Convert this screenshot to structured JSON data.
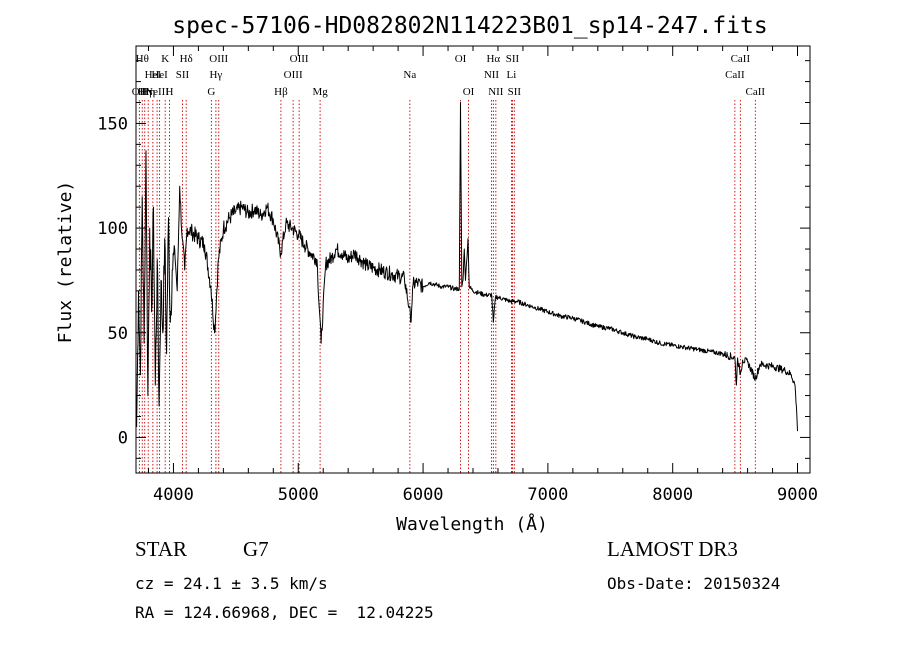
{
  "chart_data": {
    "type": "line",
    "title": "spec-57106-HD082802N114223B01_sp14-247.fits",
    "xlabel": "Wavelength (Å)",
    "ylabel": "Flux (relative)",
    "xlim": [
      3700,
      9100
    ],
    "ylim": [
      -17,
      187
    ],
    "x_ticks": [
      4000,
      5000,
      6000,
      7000,
      8000,
      9000
    ],
    "x_tick_labels": [
      "4000",
      "5000",
      "6000",
      "7000",
      "8000",
      "9000"
    ],
    "y_ticks": [
      0,
      50,
      100,
      150
    ],
    "y_tick_labels": [
      "0",
      "50",
      "100",
      "150"
    ],
    "grid": false,
    "series": [
      {
        "name": "spectrum",
        "color": "#000000",
        "anchor_points": [
          [
            3705,
            5
          ],
          [
            3720,
            70
          ],
          [
            3735,
            30
          ],
          [
            3750,
            115
          ],
          [
            3765,
            45
          ],
          [
            3780,
            137
          ],
          [
            3795,
            20
          ],
          [
            3810,
            100
          ],
          [
            3825,
            60
          ],
          [
            3840,
            110
          ],
          [
            3855,
            25
          ],
          [
            3870,
            85
          ],
          [
            3885,
            15
          ],
          [
            3900,
            75
          ],
          [
            3915,
            50
          ],
          [
            3930,
            95
          ],
          [
            3945,
            40
          ],
          [
            3960,
            105
          ],
          [
            3975,
            55
          ],
          [
            3990,
            80
          ],
          [
            4010,
            90
          ],
          [
            4030,
            70
          ],
          [
            4050,
            120
          ],
          [
            4070,
            95
          ],
          [
            4090,
            80
          ],
          [
            4110,
            100
          ],
          [
            4150,
            98
          ],
          [
            4200,
            95
          ],
          [
            4250,
            92
          ],
          [
            4300,
            72
          ],
          [
            4330,
            50
          ],
          [
            4360,
            85
          ],
          [
            4400,
            100
          ],
          [
            4450,
            105
          ],
          [
            4500,
            108
          ],
          [
            4550,
            110
          ],
          [
            4600,
            107
          ],
          [
            4650,
            109
          ],
          [
            4700,
            106
          ],
          [
            4750,
            110
          ],
          [
            4800,
            104
          ],
          [
            4860,
            88
          ],
          [
            4900,
            102
          ],
          [
            4950,
            100
          ],
          [
            5000,
            97
          ],
          [
            5050,
            92
          ],
          [
            5100,
            88
          ],
          [
            5150,
            85
          ],
          [
            5183,
            45
          ],
          [
            5220,
            83
          ],
          [
            5270,
            86
          ],
          [
            5300,
            90
          ],
          [
            5350,
            88
          ],
          [
            5400,
            85
          ],
          [
            5450,
            88
          ],
          [
            5500,
            85
          ],
          [
            5550,
            82
          ],
          [
            5600,
            81
          ],
          [
            5650,
            80
          ],
          [
            5700,
            79
          ],
          [
            5750,
            78
          ],
          [
            5800,
            77
          ],
          [
            5850,
            76
          ],
          [
            5890,
            62
          ],
          [
            5900,
            55
          ],
          [
            5920,
            73
          ],
          [
            5950,
            74
          ],
          [
            6000,
            72
          ],
          [
            6050,
            74
          ],
          [
            6100,
            73
          ],
          [
            6150,
            72
          ],
          [
            6200,
            72
          ],
          [
            6250,
            71
          ],
          [
            6290,
            71
          ],
          [
            6300,
            160
          ],
          [
            6310,
            72
          ],
          [
            6320,
            75
          ],
          [
            6330,
            90
          ],
          [
            6340,
            75
          ],
          [
            6360,
            95
          ],
          [
            6370,
            72
          ],
          [
            6400,
            70
          ],
          [
            6450,
            69
          ],
          [
            6500,
            68
          ],
          [
            6550,
            68
          ],
          [
            6563,
            55
          ],
          [
            6580,
            67
          ],
          [
            6600,
            67
          ],
          [
            6650,
            66
          ],
          [
            6700,
            65
          ],
          [
            6750,
            65
          ],
          [
            6800,
            64
          ],
          [
            6900,
            62
          ],
          [
            7000,
            60
          ],
          [
            7100,
            58
          ],
          [
            7200,
            57
          ],
          [
            7300,
            55
          ],
          [
            7400,
            53
          ],
          [
            7500,
            52
          ],
          [
            7600,
            50
          ],
          [
            7700,
            48
          ],
          [
            7800,
            47
          ],
          [
            7900,
            45
          ],
          [
            8000,
            44
          ],
          [
            8100,
            43
          ],
          [
            8200,
            42
          ],
          [
            8300,
            41
          ],
          [
            8400,
            40
          ],
          [
            8498,
            38
          ],
          [
            8510,
            25
          ],
          [
            8520,
            38
          ],
          [
            8542,
            30
          ],
          [
            8560,
            37
          ],
          [
            8600,
            36
          ],
          [
            8662,
            28
          ],
          [
            8700,
            35
          ],
          [
            8800,
            34
          ],
          [
            8900,
            32
          ],
          [
            8950,
            30
          ],
          [
            8980,
            25
          ],
          [
            8995,
            10
          ],
          [
            9000,
            3
          ]
        ]
      }
    ],
    "line_markers": [
      {
        "wavelength": 3727,
        "label": "OII",
        "row": 2
      },
      {
        "wavelength": 3750,
        "label": "Hθ",
        "row": 0
      },
      {
        "wavelength": 3770,
        "label": "Hη",
        "row": 2
      },
      {
        "wavelength": 3798,
        "label": "Hη",
        "row": 2
      },
      {
        "wavelength": 3835,
        "label": "HeI",
        "row": 1
      },
      {
        "wavelength": 3869,
        "label": "NeIII",
        "row": 2
      },
      {
        "wavelength": 3889,
        "label": "HeI",
        "row": 1
      },
      {
        "wavelength": 3934,
        "label": "K",
        "row": 0
      },
      {
        "wavelength": 3968,
        "label": "H",
        "row": 2
      },
      {
        "wavelength": 4072,
        "label": "SII",
        "row": 1
      },
      {
        "wavelength": 4102,
        "label": "Hδ",
        "row": 0
      },
      {
        "wavelength": 4304,
        "label": "G",
        "row": 2
      },
      {
        "wavelength": 4340,
        "label": "Hγ",
        "row": 1
      },
      {
        "wavelength": 4363,
        "label": "OIII",
        "row": 0
      },
      {
        "wavelength": 4861,
        "label": "Hβ",
        "row": 2
      },
      {
        "wavelength": 4959,
        "label": "OIII",
        "row": 1
      },
      {
        "wavelength": 5007,
        "label": "OIII",
        "row": 0
      },
      {
        "wavelength": 5175,
        "label": "Mg",
        "row": 2
      },
      {
        "wavelength": 5894,
        "label": "Na",
        "row": 1
      },
      {
        "wavelength": 6300,
        "label": "OI",
        "row": 0
      },
      {
        "wavelength": 6364,
        "label": "OI",
        "row": 2
      },
      {
        "wavelength": 6548,
        "label": "NII",
        "row": 1
      },
      {
        "wavelength": 6563,
        "label": "Hα",
        "row": 0
      },
      {
        "wavelength": 6583,
        "label": "NII",
        "row": 2
      },
      {
        "wavelength": 6708,
        "label": "Li",
        "row": 1
      },
      {
        "wavelength": 6716,
        "label": "SII",
        "row": 0
      },
      {
        "wavelength": 6731,
        "label": "SII",
        "row": 2
      },
      {
        "wavelength": 8498,
        "label": "CaII",
        "row": 1
      },
      {
        "wavelength": 8542,
        "label": "CaII",
        "row": 0
      },
      {
        "wavelength": 8662,
        "label": "CaII",
        "row": 2
      }
    ],
    "marker_color": "#cc0000"
  },
  "info": {
    "object_class": "STAR",
    "subclass": "G7",
    "redshift": "cz = 24.1 ± 3.5 km/s",
    "coords": "RA = 124.66968, DEC =  12.04225",
    "survey": "LAMOST DR3",
    "obs_date": "Obs-Date: 20150324"
  }
}
